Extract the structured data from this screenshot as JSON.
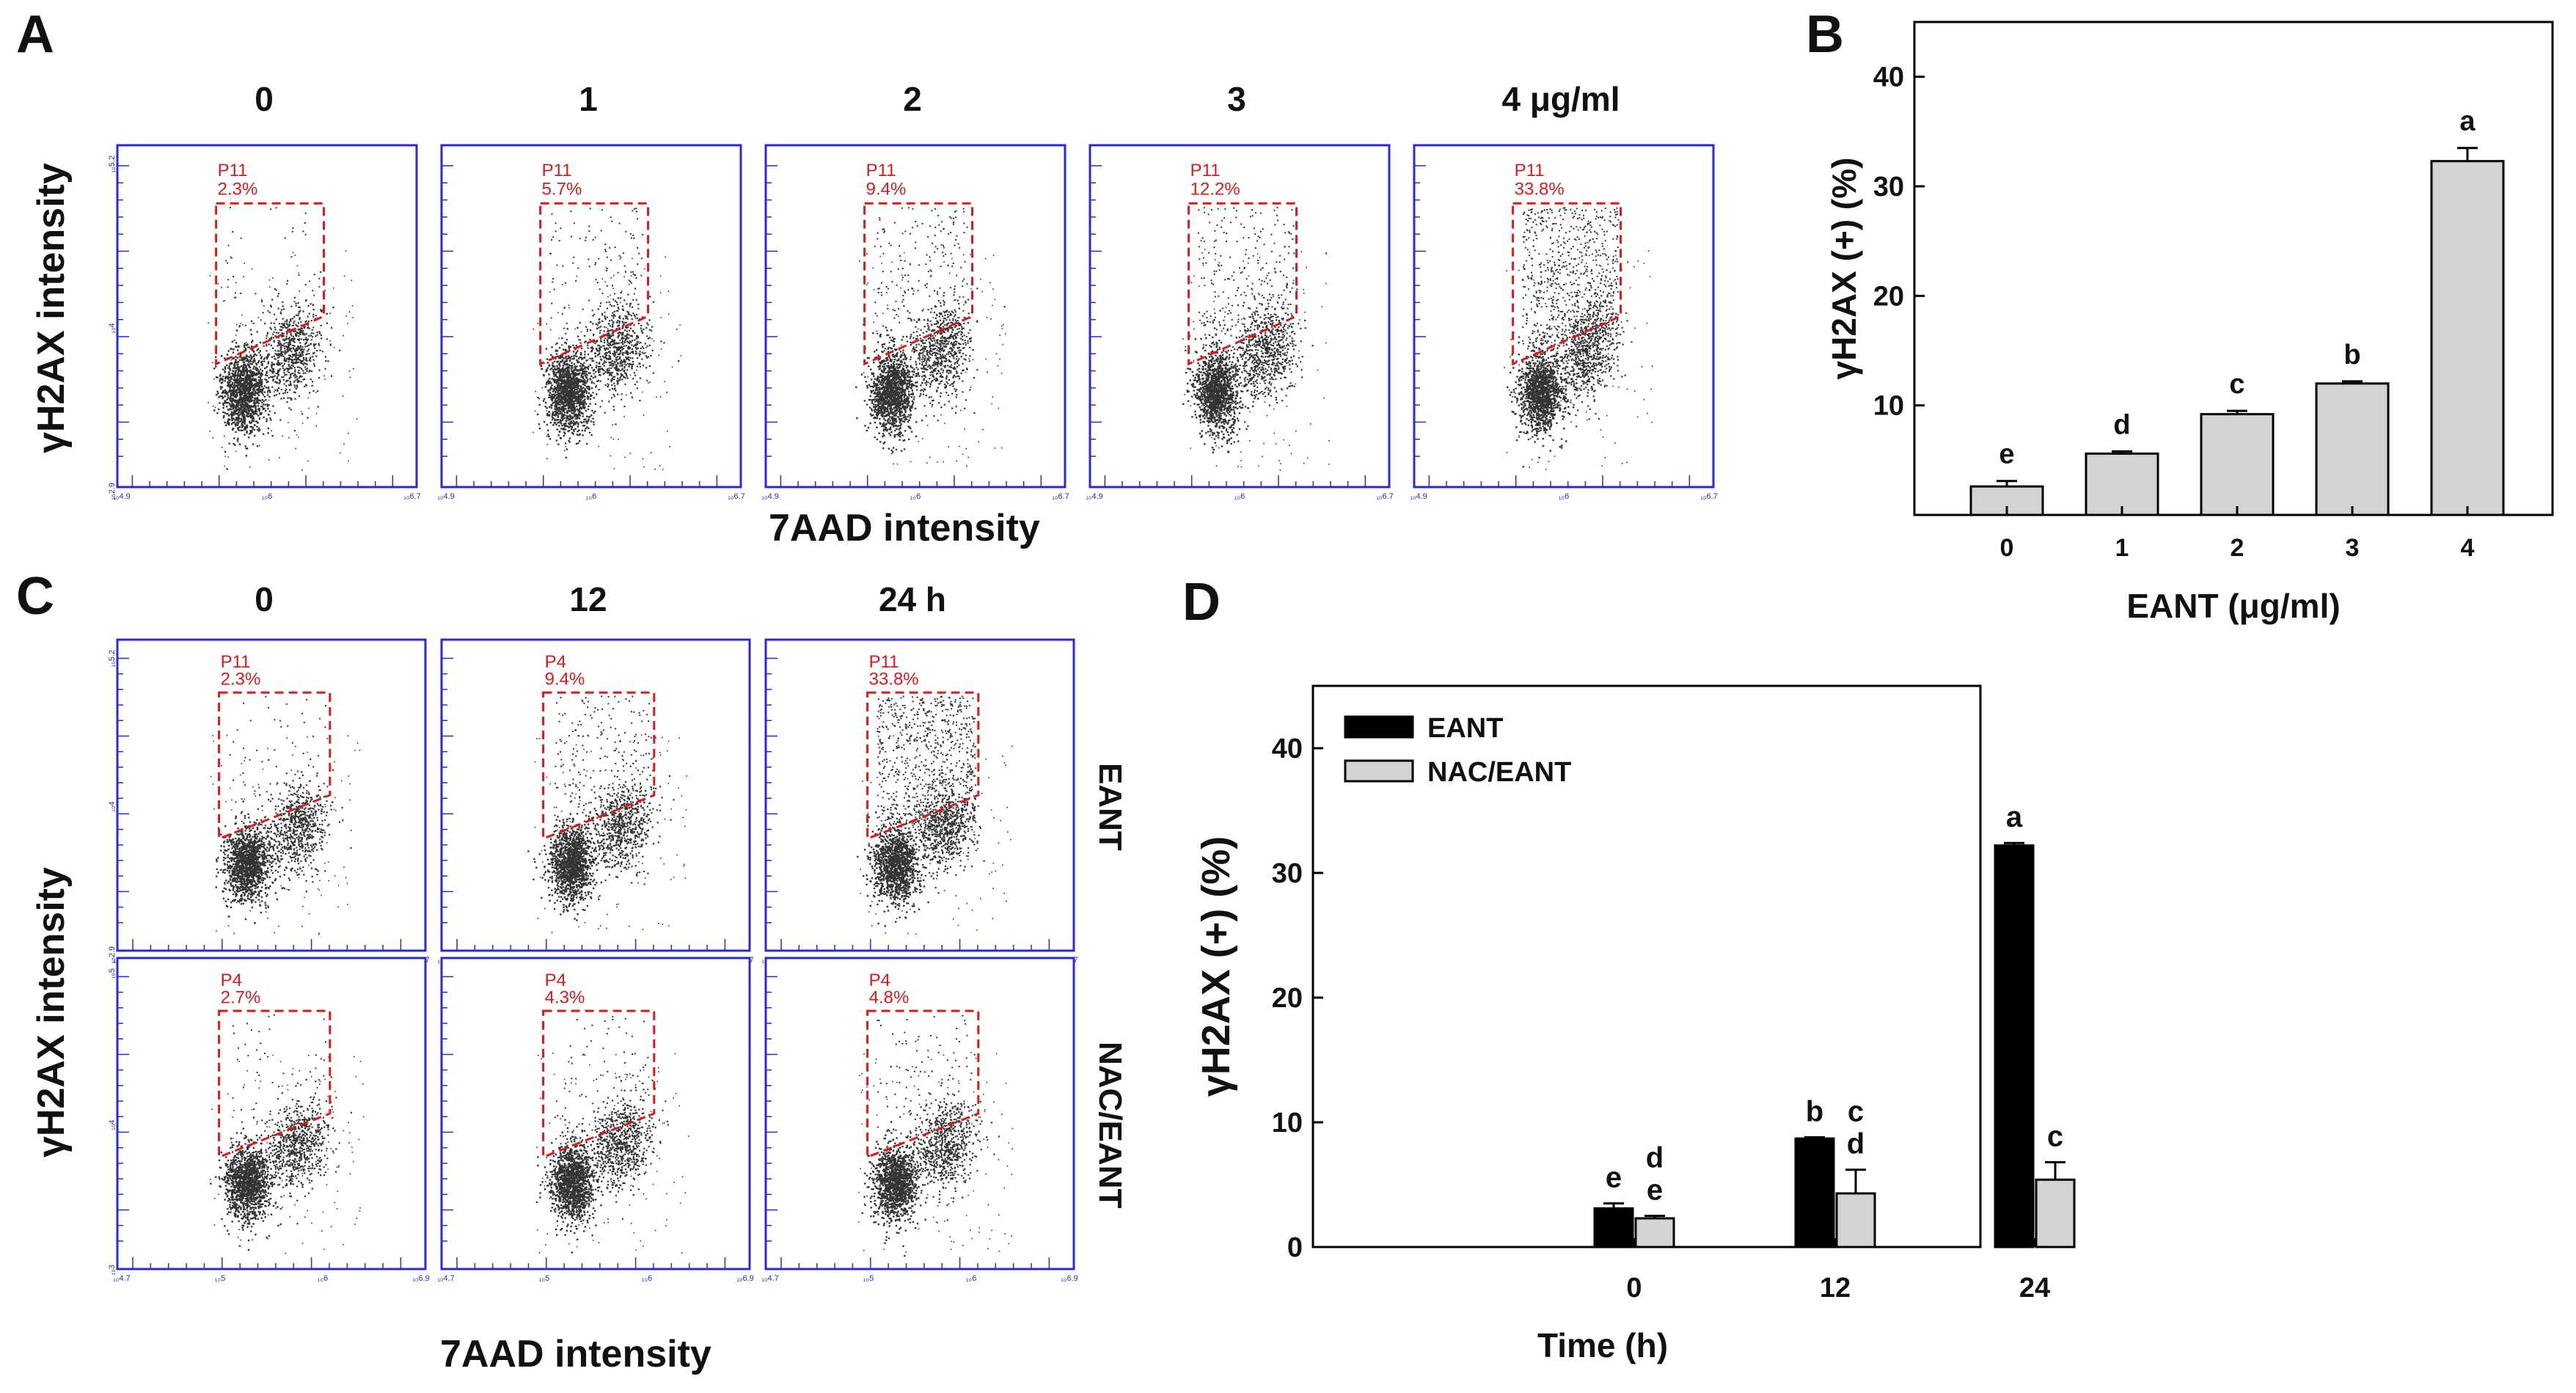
{
  "panel_a": {
    "letter": "A",
    "column_titles": [
      "0",
      "1",
      "2",
      "3",
      "4 μg/ml"
    ],
    "y_axis_title": "γH2AX intensity",
    "x_axis_title": "7AAD intensity",
    "plots": [
      {
        "gate": "P11",
        "percent": "2.3%",
        "y_ticks": [
          "10^5.2",
          "10^4",
          "10^2.9"
        ],
        "x_ticks": [
          "10^4.9",
          "10^6",
          "10^6.7"
        ]
      },
      {
        "gate": "P11",
        "percent": "5.7%",
        "y_ticks": [
          "",
          "",
          ""
        ],
        "x_ticks": [
          "10^4.9",
          "10^6",
          "10^6.7"
        ]
      },
      {
        "gate": "P11",
        "percent": "9.4%",
        "y_ticks": [
          "",
          "",
          ""
        ],
        "x_ticks": [
          "10^4.9",
          "10^6",
          "10^6.7"
        ]
      },
      {
        "gate": "P11",
        "percent": "12.2%",
        "y_ticks": [
          "",
          "",
          ""
        ],
        "x_ticks": [
          "10^4.9",
          "10^6",
          "10^6.7"
        ]
      },
      {
        "gate": "P11",
        "percent": "33.8%",
        "y_ticks": [
          "",
          "",
          ""
        ],
        "x_ticks": [
          "10^4.9",
          "10^6",
          "10^6.7"
        ]
      }
    ]
  },
  "panel_c": {
    "letter": "C",
    "column_titles": [
      "0",
      "12",
      "24 h"
    ],
    "row_labels": [
      "EANT",
      "NAC/EANT"
    ],
    "y_axis_title": "γH2AX intensity",
    "x_axis_title": "7AAD intensity",
    "plots": [
      {
        "gate": "P11",
        "percent": "2.3%"
      },
      {
        "gate": "P4",
        "percent": "9.4%"
      },
      {
        "gate": "P11",
        "percent": "33.8%"
      },
      {
        "gate": "P4",
        "percent": "2.7%"
      },
      {
        "gate": "P4",
        "percent": "4.3%"
      },
      {
        "gate": "P4",
        "percent": "4.8%"
      }
    ],
    "y_ticks_top": [
      "10^5.2",
      "10^4",
      "10^2.9"
    ],
    "y_ticks_bottom": [
      "10^5",
      "10^4",
      "10^3"
    ],
    "x_ticks_top": [
      "10^4.9",
      "10^6",
      "10^6.7"
    ],
    "x_ticks_bottom": [
      "10^4.7",
      "10^5",
      "10^6",
      "10^6.9"
    ]
  },
  "chart_data": [
    {
      "id": "B",
      "letter": "B",
      "type": "bar",
      "categories": [
        "0",
        "1",
        "2",
        "3",
        "4"
      ],
      "values": [
        2.6,
        5.6,
        9.2,
        12.0,
        32.3
      ],
      "errors": [
        0.5,
        0.2,
        0.3,
        0.2,
        1.2
      ],
      "sig_letters": [
        "e",
        "d",
        "c",
        "b",
        "a"
      ],
      "xlabel": "EANT (μg/ml)",
      "ylabel": "γH2AX (+) (%)",
      "ylim": [
        0,
        45
      ],
      "yticks": [
        "10",
        "20",
        "30",
        "40"
      ],
      "bar_color": "#d3d3d3"
    },
    {
      "id": "D",
      "letter": "D",
      "type": "bar",
      "categories": [
        "0",
        "12",
        "24"
      ],
      "series": [
        {
          "name": "EANT",
          "values": [
            3.1,
            8.7,
            32.2
          ],
          "errors": [
            0.4,
            0.1,
            0.2
          ],
          "sig_letters": [
            [
              "e"
            ],
            [
              "b"
            ],
            [
              "a"
            ]
          ],
          "color": "#000000"
        },
        {
          "name": "NAC/EANT",
          "values": [
            2.3,
            4.3,
            5.4
          ],
          "errors": [
            0.2,
            1.9,
            1.4
          ],
          "sig_letters": [
            [
              "d",
              "e"
            ],
            [
              "c",
              "d"
            ],
            [
              "c"
            ]
          ],
          "color": "#d3d3d3"
        }
      ],
      "xlabel": "Time (h)",
      "ylabel": "γH2AX (+) (%)",
      "ylim": [
        0,
        45
      ],
      "yticks": [
        "0",
        "10",
        "20",
        "30",
        "40"
      ]
    }
  ]
}
